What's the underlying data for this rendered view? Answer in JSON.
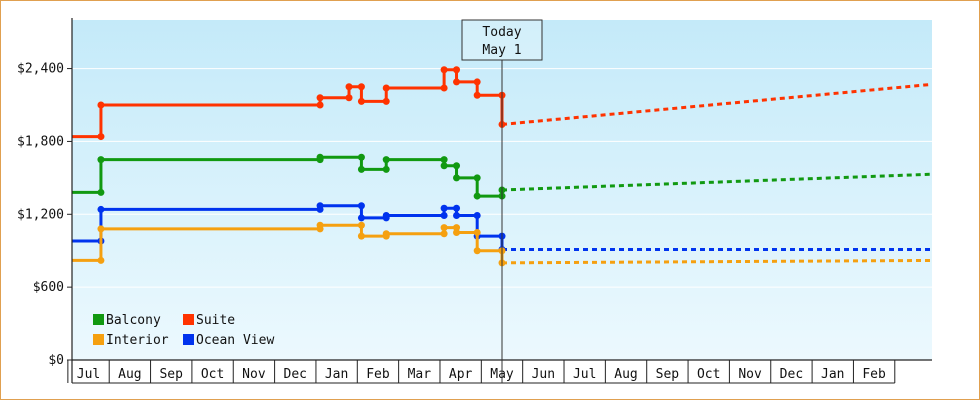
{
  "chart_data": {
    "type": "line",
    "title": "",
    "xlabel": "",
    "ylabel": "",
    "ylim": [
      0,
      2800
    ],
    "y_ticks": [
      "$0",
      "$600",
      "$1,200",
      "$1,800",
      "$2,400"
    ],
    "y_tick_values": [
      0,
      600,
      1200,
      1800,
      2400
    ],
    "x_month_labels": [
      "Jul",
      "Aug",
      "Sep",
      "Oct",
      "Nov",
      "Dec",
      "Jan",
      "Feb",
      "Mar",
      "Apr",
      "May",
      "Jun",
      "Jul",
      "Aug",
      "Sep",
      "Oct",
      "Nov",
      "Dec",
      "Jan",
      "Feb"
    ],
    "x_range_months": [
      -0.4,
      20.4
    ],
    "today": {
      "line1": "Today",
      "line2": "May 1",
      "x": 10.0
    },
    "grid": true,
    "legend_position": "bottom-left",
    "colors": {
      "balcony": "#119911",
      "suite": "#ff3300",
      "interior": "#f5a010",
      "ocean": "#0033ee",
      "bg_top": "#c4eaf9",
      "bg_bottom": "#ecf9fe",
      "frame": "#e0a050"
    },
    "series": [
      {
        "key": "suite",
        "name": "Suite",
        "color": "#ff3300",
        "history": [
          [
            -0.4,
            1840
          ],
          [
            0.3,
            1840
          ],
          [
            0.3,
            2100
          ],
          [
            5.6,
            2100
          ],
          [
            5.6,
            2160
          ],
          [
            6.3,
            2160
          ],
          [
            6.3,
            2250
          ],
          [
            6.6,
            2250
          ],
          [
            6.6,
            2130
          ],
          [
            7.2,
            2130
          ],
          [
            7.2,
            2240
          ],
          [
            8.6,
            2240
          ],
          [
            8.6,
            2390
          ],
          [
            8.9,
            2390
          ],
          [
            8.9,
            2290
          ],
          [
            9.4,
            2290
          ],
          [
            9.4,
            2180
          ],
          [
            10.0,
            2180
          ],
          [
            10.0,
            1940
          ]
        ],
        "forecast": [
          [
            10.0,
            1940
          ],
          [
            20.4,
            2270
          ]
        ]
      },
      {
        "key": "balcony",
        "name": "Balcony",
        "color": "#119911",
        "history": [
          [
            -0.4,
            1380
          ],
          [
            0.3,
            1380
          ],
          [
            0.3,
            1650
          ],
          [
            5.6,
            1650
          ],
          [
            5.6,
            1670
          ],
          [
            6.6,
            1670
          ],
          [
            6.6,
            1570
          ],
          [
            7.2,
            1570
          ],
          [
            7.2,
            1650
          ],
          [
            8.6,
            1650
          ],
          [
            8.6,
            1600
          ],
          [
            8.9,
            1600
          ],
          [
            8.9,
            1500
          ],
          [
            9.4,
            1500
          ],
          [
            9.4,
            1350
          ],
          [
            10.0,
            1350
          ],
          [
            10.0,
            1400
          ]
        ],
        "forecast": [
          [
            10.0,
            1400
          ],
          [
            20.4,
            1530
          ]
        ]
      },
      {
        "key": "ocean",
        "name": "Ocean View",
        "color": "#0033ee",
        "history": [
          [
            -0.4,
            980
          ],
          [
            0.3,
            980
          ],
          [
            0.3,
            1240
          ],
          [
            5.6,
            1240
          ],
          [
            5.6,
            1270
          ],
          [
            6.6,
            1270
          ],
          [
            6.6,
            1170
          ],
          [
            7.2,
            1170
          ],
          [
            7.2,
            1190
          ],
          [
            8.6,
            1190
          ],
          [
            8.6,
            1250
          ],
          [
            8.9,
            1250
          ],
          [
            8.9,
            1190
          ],
          [
            9.4,
            1190
          ],
          [
            9.4,
            1020
          ],
          [
            10.0,
            1020
          ],
          [
            10.0,
            910
          ]
        ],
        "forecast": [
          [
            10.0,
            910
          ],
          [
            20.4,
            910
          ]
        ]
      },
      {
        "key": "interior",
        "name": "Interior",
        "color": "#f5a010",
        "history": [
          [
            -0.4,
            820
          ],
          [
            0.3,
            820
          ],
          [
            0.3,
            1080
          ],
          [
            5.6,
            1080
          ],
          [
            5.6,
            1110
          ],
          [
            6.6,
            1110
          ],
          [
            6.6,
            1020
          ],
          [
            7.2,
            1020
          ],
          [
            7.2,
            1040
          ],
          [
            8.6,
            1040
          ],
          [
            8.6,
            1090
          ],
          [
            8.9,
            1090
          ],
          [
            8.9,
            1050
          ],
          [
            9.4,
            1050
          ],
          [
            9.4,
            900
          ],
          [
            10.0,
            900
          ],
          [
            10.0,
            800
          ]
        ],
        "forecast": [
          [
            10.0,
            800
          ],
          [
            20.4,
            820
          ]
        ]
      }
    ],
    "legend": [
      {
        "key": "balcony",
        "label": "Balcony"
      },
      {
        "key": "suite",
        "label": "Suite"
      },
      {
        "key": "interior",
        "label": "Interior"
      },
      {
        "key": "ocean",
        "label": "Ocean View"
      }
    ]
  }
}
